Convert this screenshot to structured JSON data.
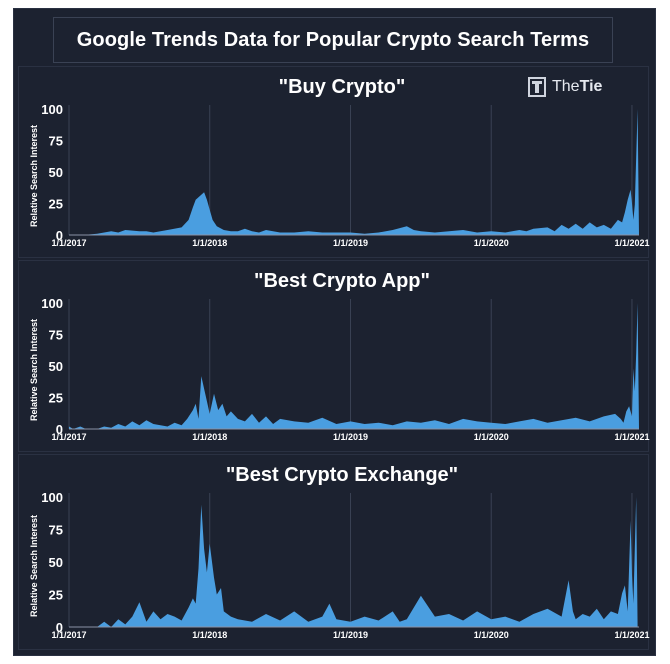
{
  "title": "Google Trends Data for Popular Crypto Search Terms",
  "logo": {
    "part1": "The",
    "part2": "Tie"
  },
  "colors": {
    "background": "#1c2230",
    "area": "#4a9ee0",
    "text": "#ffffff"
  },
  "chart_data": [
    {
      "type": "area",
      "title": "\"Buy Crypto\"",
      "ylabel": "Relative Search Interest",
      "ylim": [
        0,
        100
      ],
      "yticks": [
        0,
        25,
        50,
        75,
        100
      ],
      "xlim": [
        2017.0,
        2021.05
      ],
      "xticks": [
        {
          "x": 2017.0,
          "label": "1/1/2017"
        },
        {
          "x": 2018.0,
          "label": "1/1/2018"
        },
        {
          "x": 2019.0,
          "label": "1/1/2019"
        },
        {
          "x": 2020.0,
          "label": "1/1/2020"
        },
        {
          "x": 2021.0,
          "label": "1/1/2021"
        }
      ],
      "grid": "vertical",
      "x": [
        2017.0,
        2017.1,
        2017.2,
        2017.3,
        2017.35,
        2017.4,
        2017.5,
        2017.55,
        2017.6,
        2017.7,
        2017.8,
        2017.85,
        2017.88,
        2017.9,
        2017.92,
        2017.94,
        2017.96,
        2017.98,
        2018.0,
        2018.02,
        2018.05,
        2018.1,
        2018.15,
        2018.2,
        2018.25,
        2018.3,
        2018.35,
        2018.4,
        2018.5,
        2018.6,
        2018.7,
        2018.8,
        2018.9,
        2019.0,
        2019.1,
        2019.2,
        2019.3,
        2019.4,
        2019.45,
        2019.5,
        2019.6,
        2019.7,
        2019.8,
        2019.9,
        2020.0,
        2020.1,
        2020.2,
        2020.25,
        2020.3,
        2020.4,
        2020.45,
        2020.5,
        2020.55,
        2020.6,
        2020.65,
        2020.7,
        2020.75,
        2020.8,
        2020.85,
        2020.9,
        2020.93,
        2020.95,
        2020.97,
        2020.99,
        2021.0,
        2021.01,
        2021.02,
        2021.03,
        2021.04,
        2021.05
      ],
      "values": [
        0,
        0,
        1,
        3,
        2,
        4,
        3,
        3,
        2,
        4,
        6,
        12,
        22,
        28,
        30,
        32,
        34,
        28,
        20,
        12,
        7,
        4,
        3,
        3,
        5,
        3,
        2,
        4,
        2,
        2,
        3,
        2,
        2,
        2,
        1,
        2,
        4,
        7,
        4,
        3,
        2,
        3,
        4,
        2,
        3,
        2,
        4,
        3,
        5,
        6,
        3,
        8,
        5,
        9,
        5,
        10,
        6,
        8,
        5,
        12,
        10,
        18,
        28,
        36,
        25,
        12,
        24,
        62,
        100,
        0
      ]
    },
    {
      "type": "area",
      "title": "\"Best Crypto App\"",
      "ylabel": "Relative Search Interest",
      "ylim": [
        0,
        100
      ],
      "yticks": [
        0,
        25,
        50,
        75,
        100
      ],
      "xlim": [
        2017.0,
        2021.05
      ],
      "xticks": [
        {
          "x": 2017.0,
          "label": "1/1/2017"
        },
        {
          "x": 2018.0,
          "label": "1/1/2018"
        },
        {
          "x": 2019.0,
          "label": "1/1/2019"
        },
        {
          "x": 2020.0,
          "label": "1/1/2020"
        },
        {
          "x": 2021.0,
          "label": "1/1/2021"
        }
      ],
      "grid": "vertical",
      "x": [
        2017.0,
        2017.03,
        2017.08,
        2017.12,
        2017.2,
        2017.25,
        2017.3,
        2017.35,
        2017.4,
        2017.45,
        2017.5,
        2017.55,
        2017.6,
        2017.65,
        2017.7,
        2017.75,
        2017.8,
        2017.84,
        2017.88,
        2017.9,
        2017.92,
        2017.94,
        2017.96,
        2017.98,
        2018.0,
        2018.03,
        2018.06,
        2018.09,
        2018.12,
        2018.15,
        2018.2,
        2018.25,
        2018.3,
        2018.35,
        2018.4,
        2018.45,
        2018.5,
        2018.6,
        2018.7,
        2018.8,
        2018.9,
        2019.0,
        2019.1,
        2019.2,
        2019.3,
        2019.4,
        2019.5,
        2019.6,
        2019.7,
        2019.8,
        2019.9,
        2020.0,
        2020.1,
        2020.2,
        2020.3,
        2020.4,
        2020.5,
        2020.6,
        2020.7,
        2020.8,
        2020.88,
        2020.92,
        2020.94,
        2020.96,
        2020.98,
        2021.0,
        2021.01,
        2021.02,
        2021.03,
        2021.04,
        2021.05
      ],
      "values": [
        2,
        0,
        2,
        0,
        0,
        2,
        1,
        4,
        2,
        6,
        3,
        7,
        4,
        3,
        2,
        5,
        3,
        8,
        15,
        20,
        8,
        42,
        32,
        22,
        12,
        28,
        15,
        20,
        10,
        14,
        8,
        6,
        12,
        5,
        10,
        4,
        8,
        6,
        5,
        9,
        4,
        6,
        4,
        5,
        3,
        6,
        5,
        7,
        4,
        8,
        6,
        5,
        4,
        6,
        8,
        5,
        7,
        9,
        6,
        10,
        12,
        8,
        5,
        14,
        18,
        10,
        48,
        30,
        60,
        100,
        0
      ]
    },
    {
      "type": "area",
      "title": "\"Best Crypto Exchange\"",
      "ylabel": "Relative Search Interest",
      "ylim": [
        0,
        100
      ],
      "yticks": [
        0,
        25,
        50,
        75,
        100
      ],
      "xlim": [
        2017.0,
        2021.05
      ],
      "xticks": [
        {
          "x": 2017.0,
          "label": "1/1/2017"
        },
        {
          "x": 2018.0,
          "label": "1/1/2018"
        },
        {
          "x": 2019.0,
          "label": "1/1/2019"
        },
        {
          "x": 2020.0,
          "label": "1/1/2020"
        },
        {
          "x": 2021.0,
          "label": "1/1/2021"
        }
      ],
      "grid": "vertical",
      "x": [
        2017.0,
        2017.1,
        2017.2,
        2017.25,
        2017.3,
        2017.35,
        2017.4,
        2017.45,
        2017.5,
        2017.55,
        2017.6,
        2017.65,
        2017.7,
        2017.75,
        2017.8,
        2017.85,
        2017.88,
        2017.9,
        2017.92,
        2017.94,
        2017.96,
        2017.98,
        2018.0,
        2018.03,
        2018.05,
        2018.08,
        2018.1,
        2018.15,
        2018.2,
        2018.3,
        2018.4,
        2018.5,
        2018.6,
        2018.7,
        2018.8,
        2018.85,
        2018.9,
        2019.0,
        2019.1,
        2019.2,
        2019.3,
        2019.35,
        2019.4,
        2019.5,
        2019.6,
        2019.7,
        2019.8,
        2019.9,
        2020.0,
        2020.1,
        2020.2,
        2020.3,
        2020.4,
        2020.5,
        2020.55,
        2020.58,
        2020.6,
        2020.65,
        2020.7,
        2020.75,
        2020.8,
        2020.85,
        2020.9,
        2020.93,
        2020.95,
        2020.97,
        2020.99,
        2021.0,
        2021.01,
        2021.02,
        2021.03,
        2021.04,
        2021.05
      ],
      "values": [
        0,
        0,
        0,
        4,
        0,
        6,
        2,
        8,
        19,
        4,
        12,
        6,
        10,
        8,
        5,
        15,
        22,
        18,
        45,
        94,
        60,
        42,
        64,
        38,
        25,
        30,
        12,
        8,
        6,
        4,
        10,
        5,
        12,
        4,
        8,
        18,
        6,
        4,
        8,
        5,
        12,
        4,
        6,
        24,
        8,
        10,
        5,
        12,
        6,
        8,
        4,
        10,
        14,
        8,
        36,
        12,
        6,
        10,
        8,
        14,
        6,
        12,
        10,
        26,
        32,
        12,
        82,
        40,
        18,
        60,
        100,
        0,
        0
      ]
    }
  ]
}
